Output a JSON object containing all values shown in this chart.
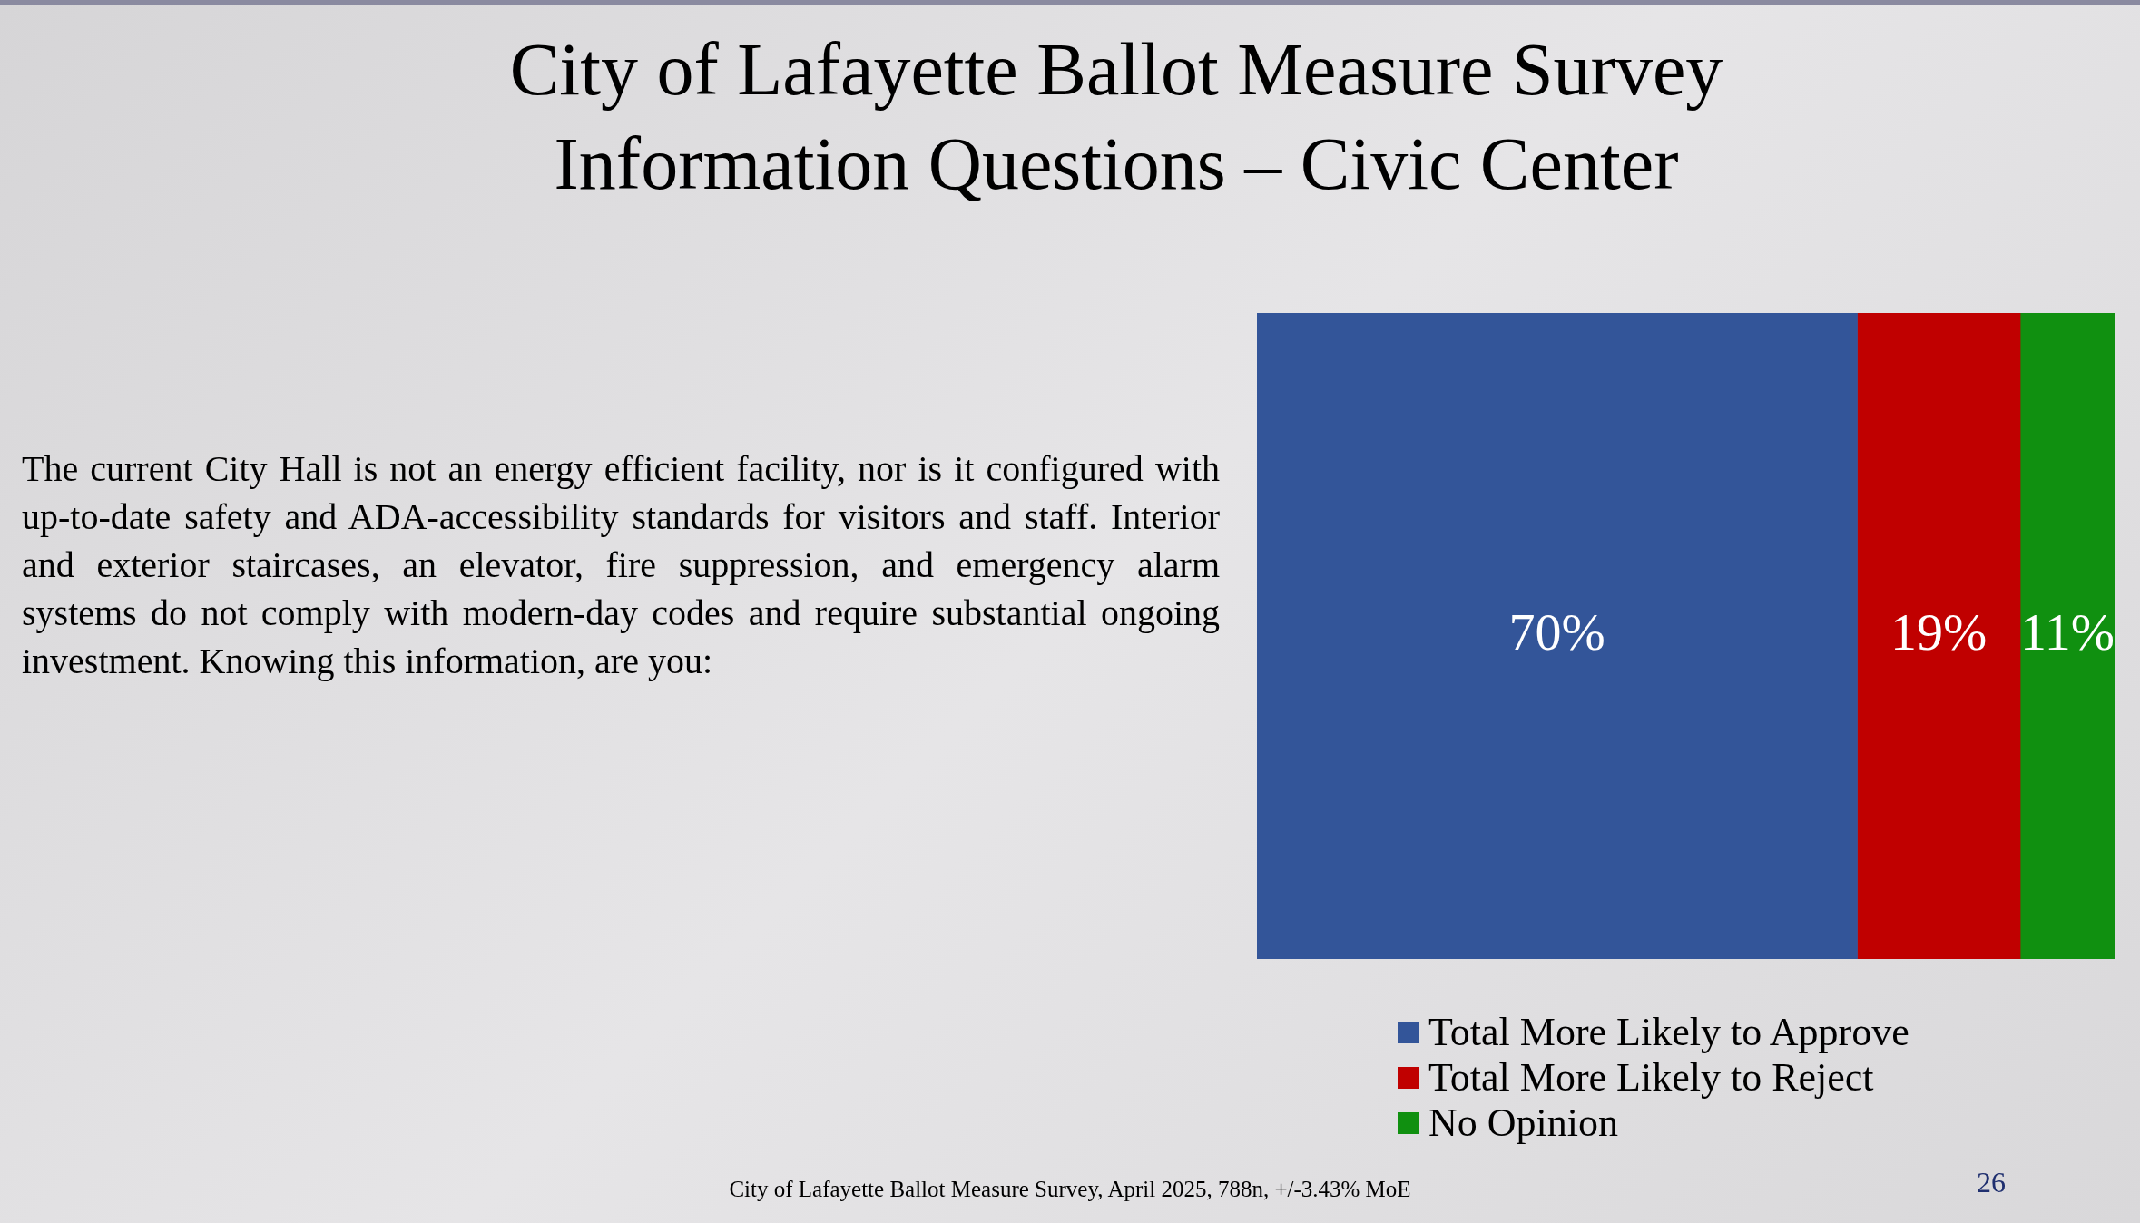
{
  "chart_data": {
    "type": "bar",
    "title": "City of Lafayette Ballot Measure Survey\nInformation Questions – Civic Center",
    "categories": [
      null
    ],
    "orientation": "horizontal",
    "stacked": true,
    "xlim": [
      0,
      100
    ],
    "tick_labels": false,
    "legend": "bottom",
    "series": [
      {
        "name": "Total More Likely to Approve",
        "color": "#335599",
        "values": [
          70
        ],
        "value_labels": [
          "70%"
        ]
      },
      {
        "name": "Total More Likely to Reject",
        "color": "#c00000",
        "values": [
          19
        ],
        "value_labels": [
          "19%"
        ]
      },
      {
        "name": "No Opinion",
        "color": "#109010",
        "values": [
          11
        ],
        "value_labels": [
          "11%"
        ]
      }
    ],
    "annotations": [
      "The current City Hall is not an energy efficient facility, nor is it configured with up-to-date safety and ADA-accessibility standards for visitors and staff. Interior and exterior staircases, an elevator, fire suppression, and emergency alarm systems do not comply with modern-day codes and require substantial ongoing investment. Knowing this information, are you:",
      "City of Lafayette Ballot Measure Survey, April 2025, 788n, +/-3.43% MoE",
      "26"
    ]
  }
}
